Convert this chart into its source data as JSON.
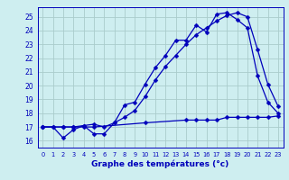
{
  "title": "Graphe des températures (°c)",
  "bg_color": "#ceeef0",
  "plot_bg_color": "#ceeef0",
  "grid_color": "#aacccc",
  "line_color": "#0000bb",
  "xlim": [
    -0.5,
    23.5
  ],
  "ylim": [
    15.5,
    25.7
  ],
  "yticks": [
    16,
    17,
    18,
    19,
    20,
    21,
    22,
    23,
    24,
    25
  ],
  "xticks": [
    0,
    1,
    2,
    3,
    4,
    5,
    6,
    7,
    8,
    9,
    10,
    11,
    12,
    13,
    14,
    15,
    16,
    17,
    18,
    19,
    20,
    21,
    22,
    23
  ],
  "series1_x": [
    0,
    1,
    2,
    3,
    4,
    5,
    6,
    7,
    8,
    9,
    10,
    11,
    12,
    13,
    14,
    15,
    16,
    17,
    18,
    19,
    20,
    21,
    22,
    23
  ],
  "series1_y": [
    17.0,
    17.0,
    16.2,
    16.8,
    17.1,
    16.5,
    16.5,
    17.3,
    18.6,
    18.8,
    20.1,
    21.3,
    22.2,
    23.3,
    23.3,
    24.4,
    23.9,
    25.2,
    25.3,
    24.8,
    24.2,
    20.7,
    18.8,
    18.0
  ],
  "series2_x": [
    0,
    1,
    2,
    3,
    4,
    5,
    6,
    7,
    8,
    9,
    10,
    11,
    12,
    13,
    14,
    15,
    16,
    17,
    18,
    19,
    20,
    21,
    22,
    23
  ],
  "series2_y": [
    17.0,
    17.0,
    17.0,
    17.0,
    17.1,
    17.2,
    17.0,
    17.3,
    17.7,
    18.2,
    19.2,
    20.4,
    21.4,
    22.2,
    23.0,
    23.7,
    24.2,
    24.7,
    25.1,
    25.3,
    25.0,
    22.6,
    20.1,
    18.5
  ],
  "series3_x": [
    0,
    2,
    3,
    4,
    5,
    10,
    14,
    15,
    16,
    17,
    18,
    19,
    20,
    21,
    22,
    23
  ],
  "series3_y": [
    17.0,
    17.0,
    17.0,
    17.0,
    17.0,
    17.3,
    17.5,
    17.5,
    17.5,
    17.5,
    17.7,
    17.7,
    17.7,
    17.7,
    17.7,
    17.8
  ]
}
